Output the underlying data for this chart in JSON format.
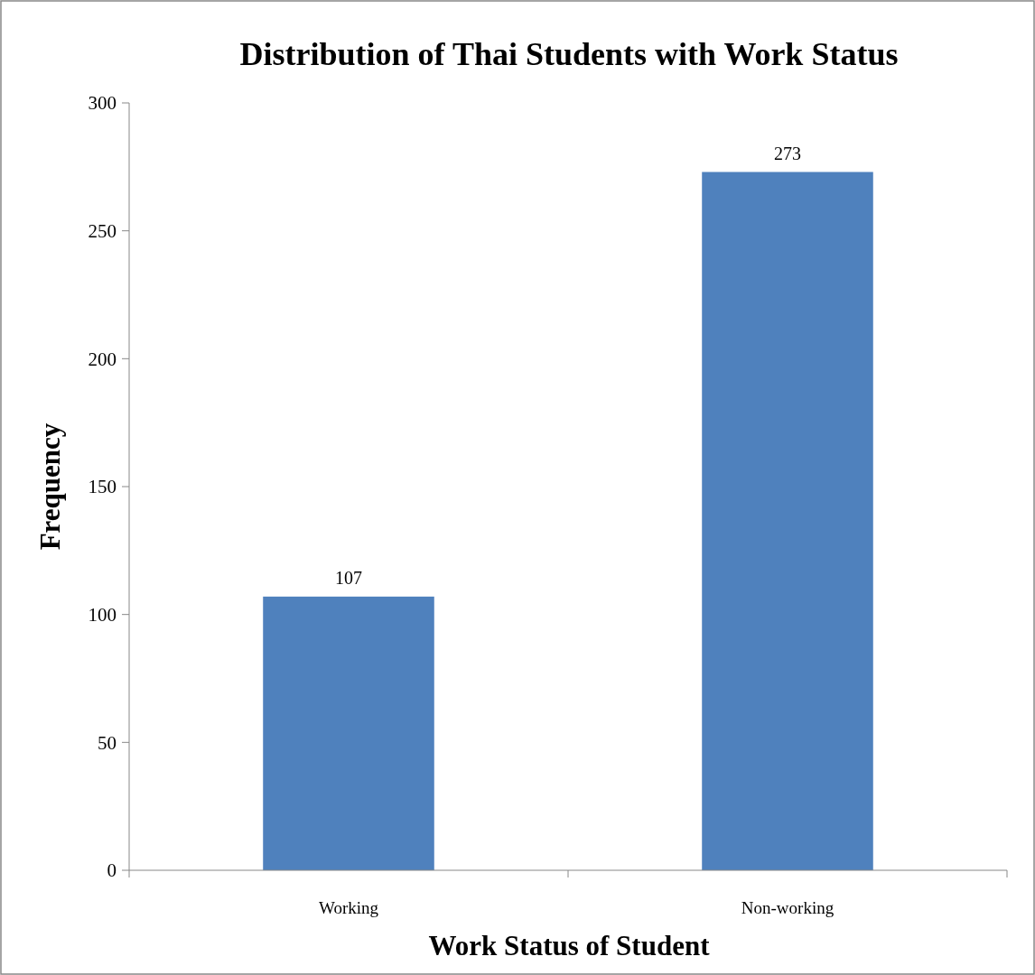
{
  "chart_data": {
    "type": "bar",
    "title": "Distribution of Thai Students with Work Status",
    "xlabel": "Work Status of Student",
    "ylabel": "Frequency",
    "categories": [
      "Working",
      "Non-working"
    ],
    "values": [
      107,
      273
    ],
    "color": "#4f81bd",
    "ylim": [
      0,
      300
    ],
    "yticks": [
      0,
      50,
      100,
      150,
      200,
      250,
      300
    ],
    "data_labels": true,
    "grid": false
  }
}
